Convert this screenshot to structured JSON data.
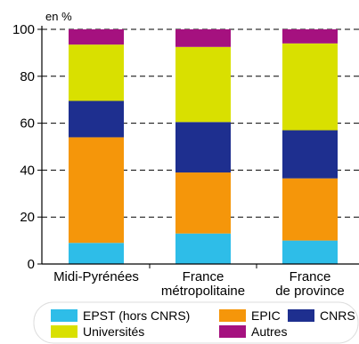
{
  "chart_data": {
    "type": "bar",
    "stacked": true,
    "unit_label": "en %",
    "categories": [
      [
        "Midi-Pyrénées"
      ],
      [
        "France",
        "métropolitaine"
      ],
      [
        "France",
        "de province"
      ]
    ],
    "ylim": [
      0,
      100
    ],
    "yticks": [
      0,
      20,
      40,
      60,
      80,
      100
    ],
    "grid": "dashed-horizontal",
    "legend_placement": "bottom",
    "series": [
      {
        "name": "EPST (hors CNRS)",
        "color": "#2ebde8",
        "values": [
          9,
          13,
          10
        ]
      },
      {
        "name": "EPIC",
        "color": "#f5960a",
        "values": [
          45,
          26,
          26.5
        ]
      },
      {
        "name": "CNRS",
        "color": "#1e2f8f",
        "values": [
          15.5,
          21.5,
          20.5
        ]
      },
      {
        "name": "Universités",
        "color": "#d9e000",
        "values": [
          24,
          32,
          37
        ]
      },
      {
        "name": "Autres",
        "color": "#a5117f",
        "values": [
          6.5,
          7.5,
          6
        ]
      }
    ]
  }
}
